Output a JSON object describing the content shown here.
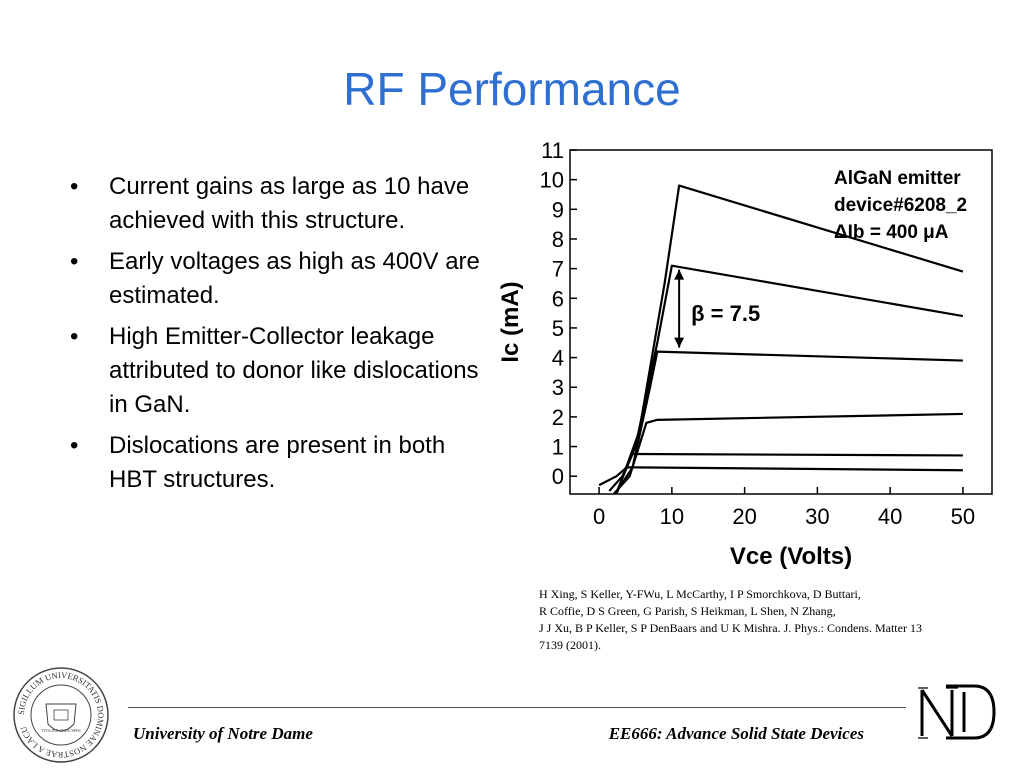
{
  "slide": {
    "title": "RF Performance",
    "bullets": [
      "Current gains as large as 10 have achieved with this structure.",
      "Early voltages as high as 400V are estimated.",
      "High Emitter-Collector leakage attributed to donor like dislocations in GaN.",
      "Dislocations are present in both HBT structures."
    ],
    "bullet_char": "•"
  },
  "chart_data": {
    "type": "line",
    "xlabel": "Vce (Volts)",
    "ylabel": "Ic (mA)",
    "xlim": [
      -4,
      54
    ],
    "ylim": [
      -0.6,
      11
    ],
    "xticks": [
      0,
      10,
      20,
      30,
      40,
      50
    ],
    "yticks": [
      0,
      1,
      2,
      3,
      4,
      5,
      6,
      7,
      8,
      9,
      10,
      11
    ],
    "legend_lines": [
      "AlGaN emitter",
      "device#6208_2",
      "ΔIb = 400 μA"
    ],
    "annotation": "β = 7.5",
    "annotation_arrow": [
      7.1,
      4.2
    ],
    "annotation_x": 11,
    "series": [
      {
        "x": [
          0,
          2.4,
          3.8,
          50
        ],
        "values": [
          -0.3,
          0,
          0.3,
          0.2
        ]
      },
      {
        "x": [
          1.4,
          3.2,
          4.6,
          50
        ],
        "values": [
          -0.5,
          0,
          0.75,
          0.7
        ]
      },
      {
        "x": [
          2,
          4.2,
          6.5,
          8,
          50
        ],
        "values": [
          -0.6,
          0,
          1.8,
          1.9,
          2.1
        ]
      },
      {
        "x": [
          2.2,
          4.6,
          7,
          8,
          50
        ],
        "values": [
          -0.6,
          0.3,
          3.0,
          4.2,
          3.9
        ]
      },
      {
        "x": [
          2.3,
          5,
          8,
          10,
          50
        ],
        "values": [
          -0.6,
          1.0,
          4.5,
          7.1,
          5.4
        ]
      },
      {
        "x": [
          2.4,
          5.5,
          9,
          11,
          50
        ],
        "values": [
          -0.6,
          1.5,
          6.5,
          9.8,
          6.9
        ]
      }
    ]
  },
  "citation": {
    "lines": [
      "H Xing, S Keller, Y-FWu, L McCarthy, I P Smorchkova, D Buttari,",
      "R Coffie, D S Green, G Parish, S Heikman, L Shen, N Zhang,",
      "J J Xu, B P Keller, S P DenBaars and U K Mishra. J. Phys.: Condens. Matter 13",
      "7139 (2001)."
    ]
  },
  "footer": {
    "left": "University of Notre Dame",
    "right": "EE666: Advance Solid State Devices",
    "seal_text": "SIGILLUM UNIVERSITATIS DOMINAE NOSTRAE A LACU",
    "seal_inner": "VITA DULCEDO SPES"
  },
  "colors": {
    "title": "#2f6fd1",
    "text": "#000000"
  }
}
